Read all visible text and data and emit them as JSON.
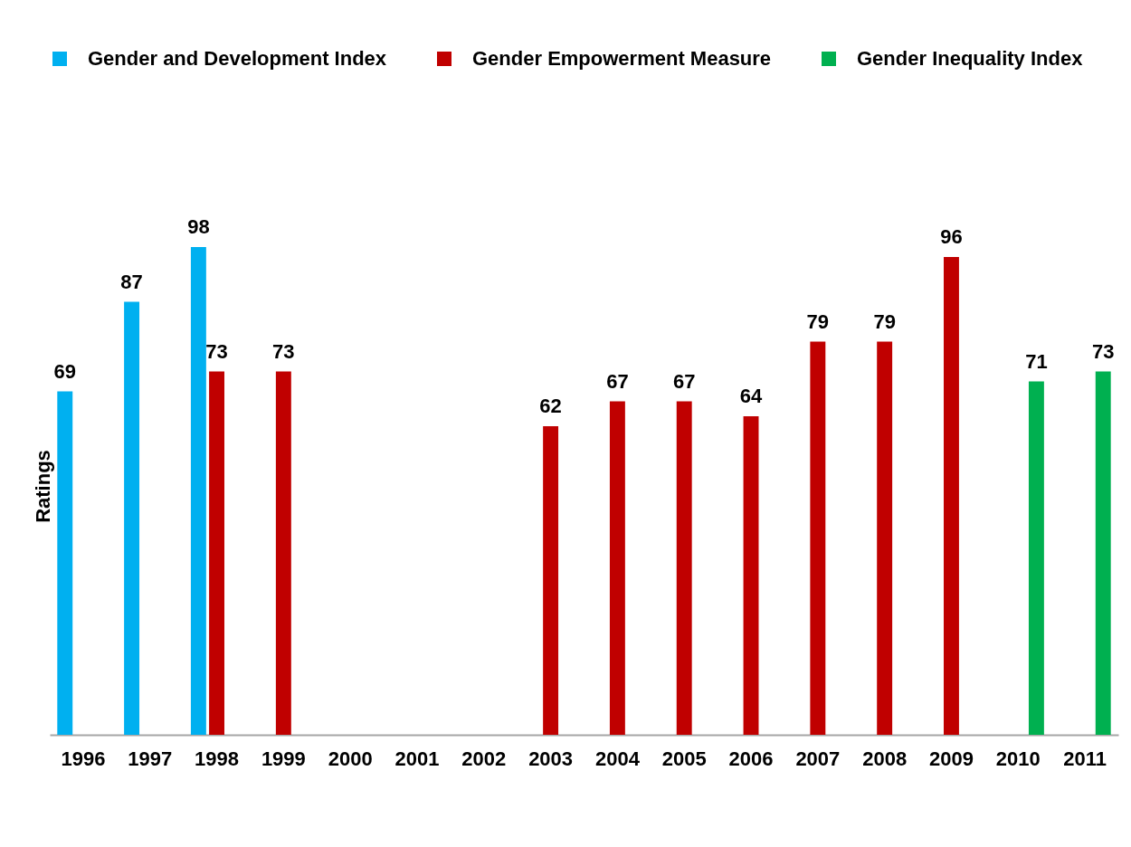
{
  "chart_data": {
    "type": "bar",
    "ylabel": "Ratings",
    "categories": [
      "1996",
      "1997",
      "1998",
      "1999",
      "2000",
      "2001",
      "2002",
      "2003",
      "2004",
      "2005",
      "2006",
      "2007",
      "2008",
      "2009",
      "2010",
      "2011"
    ],
    "series": [
      {
        "name": "Gender and Development Index",
        "color": "#00b0f0",
        "values": [
          69,
          87,
          98,
          null,
          null,
          null,
          null,
          null,
          null,
          null,
          null,
          null,
          null,
          null,
          null,
          null
        ]
      },
      {
        "name": "Gender Empowerment Measure",
        "color": "#c00000",
        "values": [
          null,
          null,
          73,
          73,
          null,
          null,
          null,
          62,
          67,
          67,
          64,
          79,
          79,
          96,
          null,
          null
        ]
      },
      {
        "name": "Gender Inequality Index",
        "color": "#00b050",
        "values": [
          null,
          null,
          null,
          null,
          null,
          null,
          null,
          null,
          null,
          null,
          null,
          null,
          null,
          null,
          71,
          73
        ]
      }
    ],
    "data_labels": true,
    "legend": "top",
    "tick_labels": "x"
  }
}
